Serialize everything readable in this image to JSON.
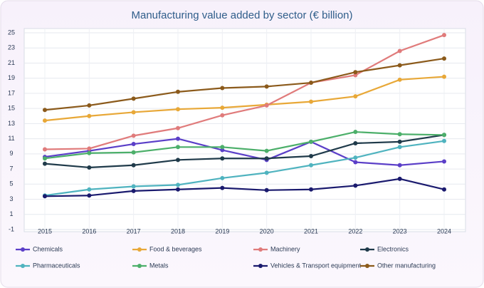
{
  "chart_data": {
    "type": "line",
    "title": "Manufacturing value added by sector (€ billion)",
    "categories": [
      "2015",
      "2016",
      "2017",
      "2018",
      "2019",
      "2020",
      "2021",
      "2022",
      "2023",
      "2024"
    ],
    "series": [
      {
        "name": "Chemicals",
        "color": "#5b3fc8",
        "values": [
          8.6,
          9.4,
          10.3,
          11.0,
          9.5,
          8.2,
          10.6,
          7.9,
          7.5,
          8.0
        ]
      },
      {
        "name": "Food & beverages",
        "color": "#e8a838",
        "values": [
          13.4,
          14.0,
          14.5,
          14.9,
          15.1,
          15.5,
          15.9,
          16.6,
          18.8,
          19.2
        ]
      },
      {
        "name": "Machinery",
        "color": "#e07b7b",
        "values": [
          9.6,
          9.7,
          11.4,
          12.4,
          14.1,
          15.4,
          18.4,
          19.4,
          22.6,
          24.7
        ]
      },
      {
        "name": "Electronics",
        "color": "#1f3a4a",
        "values": [
          7.7,
          7.2,
          7.5,
          8.2,
          8.4,
          8.4,
          8.7,
          10.4,
          10.6,
          11.5
        ]
      },
      {
        "name": "Pharmaceuticals",
        "color": "#4fb3bf",
        "values": [
          3.5,
          4.3,
          4.7,
          4.9,
          5.8,
          6.5,
          7.5,
          8.5,
          9.9,
          10.7
        ]
      },
      {
        "name": "Metals",
        "color": "#4caf6a",
        "values": [
          8.4,
          9.1,
          9.2,
          9.9,
          9.9,
          9.4,
          10.6,
          11.9,
          11.6,
          11.5
        ]
      },
      {
        "name": "Vehicles & Transport equipment",
        "color": "#1a1a6e",
        "values": [
          3.4,
          3.5,
          4.1,
          4.3,
          4.5,
          4.2,
          4.3,
          4.8,
          5.7,
          4.3
        ]
      },
      {
        "name": "Other manufacturing",
        "color": "#8b5a1b",
        "values": [
          14.8,
          15.4,
          16.3,
          17.2,
          17.7,
          17.9,
          18.4,
          19.8,
          20.7,
          21.6
        ]
      }
    ],
    "ylim": [
      -1,
      25
    ],
    "yticks": [
      -1,
      1,
      3,
      5,
      7,
      9,
      11,
      13,
      15,
      17,
      19,
      21,
      23,
      25
    ],
    "grid": true
  }
}
